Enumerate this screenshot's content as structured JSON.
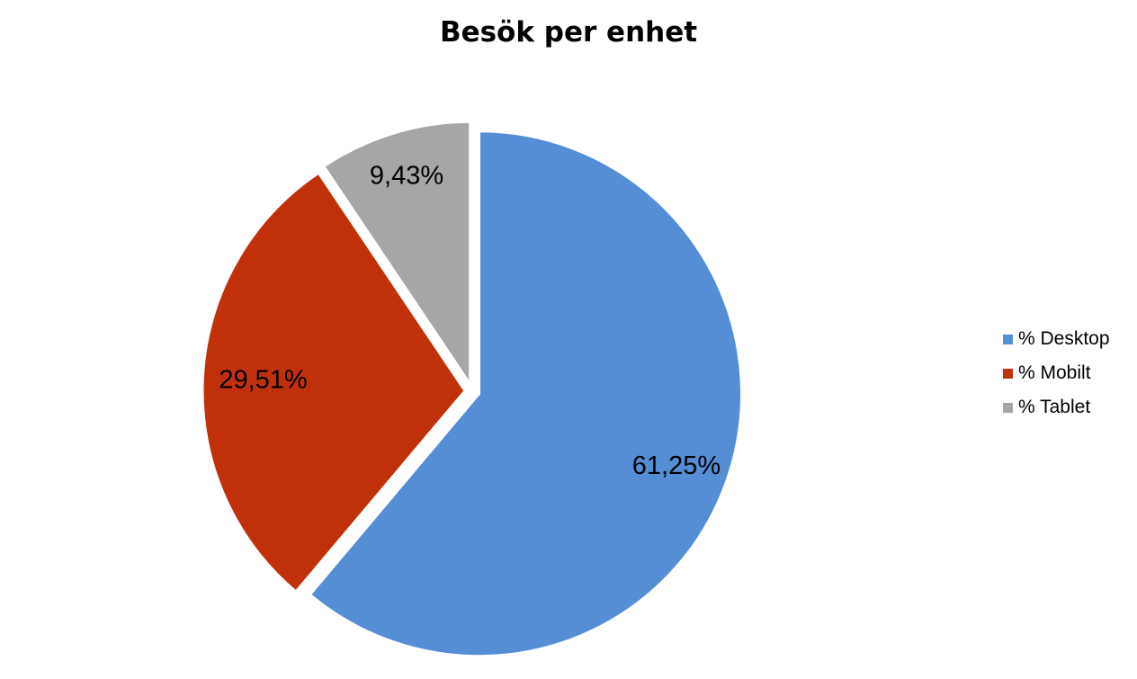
{
  "chart_data": {
    "type": "pie",
    "title": "Besök per enhet",
    "slices": [
      {
        "name": "% Desktop",
        "value": 61.25,
        "label": "61,25%",
        "color": "#558ED5"
      },
      {
        "name": "% Mobilt",
        "value": 29.51,
        "label": "29,51%",
        "color": "#C0310B"
      },
      {
        "name": "% Tablet",
        "value": 9.43,
        "label": "9,43%",
        "color": "#A6A6A6"
      }
    ],
    "legend_position": "right",
    "start_angle": "top, clockwise",
    "exploded": true
  }
}
